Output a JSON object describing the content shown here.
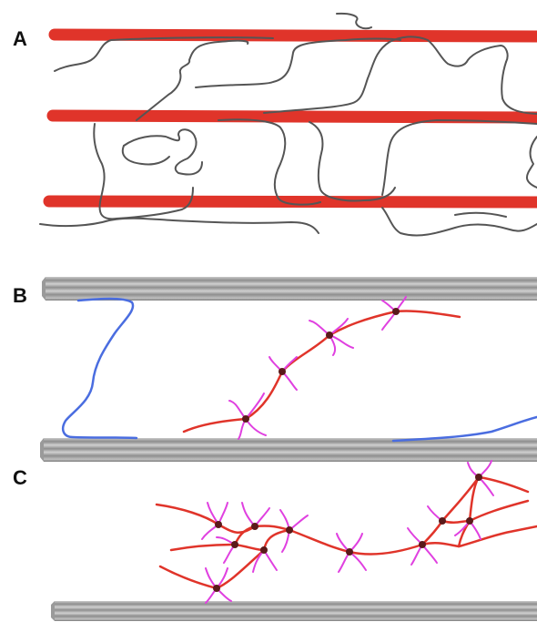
{
  "panels": [
    {
      "label": "A"
    },
    {
      "label": "B"
    },
    {
      "label": "C"
    }
  ],
  "colors": {
    "fiber_red": "#e0342a",
    "chain_gray": "#555555",
    "rod_gray": "#9a9a9a",
    "chain_blue": "#4a6de0",
    "chain_red": "#e0342a",
    "branch_magenta": "#e040e0",
    "junction_dark": "#5a1a1a"
  }
}
